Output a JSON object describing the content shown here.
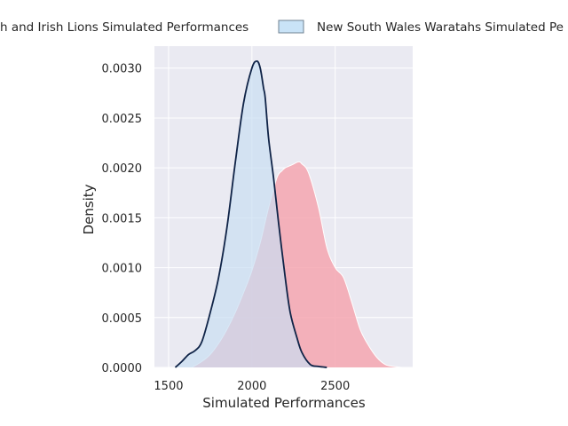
{
  "chart_data": {
    "type": "area",
    "xlabel": "Simulated Performances",
    "ylabel": "Density",
    "xlim": [
      1415,
      2965
    ],
    "ylim": [
      0,
      0.00322
    ],
    "xticks": [
      1500,
      2000,
      2500
    ],
    "xtick_labels": [
      "1500",
      "2000",
      "2500"
    ],
    "yticks": [
      0,
      0.0005,
      0.001,
      0.0015,
      0.002,
      0.0025,
      0.003
    ],
    "ytick_labels": [
      "0.0000",
      "0.0005",
      "0.0010",
      "0.0015",
      "0.0020",
      "0.0025",
      "0.0030"
    ],
    "grid": true,
    "legend_position": "top",
    "legend_visible_text": [
      "h and Irish Lions Simulated Performances",
      "New South Wales Waratahs Simulated Pe"
    ],
    "series": [
      {
        "name": "British and Irish Lions Simulated Performances",
        "fill_color": "#f4a6b0",
        "line_color": "#ffffff",
        "x": [
          1640,
          1700,
          1750,
          1800,
          1850,
          1900,
          1950,
          2000,
          2050,
          2100,
          2150,
          2180,
          2200,
          2240,
          2280,
          2300,
          2340,
          2400,
          2450,
          2500,
          2550,
          2600,
          2650,
          2700,
          2750,
          2800,
          2850,
          2900
        ],
        "values": [
          0.0,
          6e-05,
          0.00013,
          0.00024,
          0.00038,
          0.00055,
          0.00075,
          0.00097,
          0.00125,
          0.0016,
          0.0019,
          0.00197,
          0.002,
          0.00203,
          0.00206,
          0.00204,
          0.00195,
          0.0016,
          0.0012,
          0.001,
          0.0009,
          0.00065,
          0.00038,
          0.00022,
          0.0001,
          3e-05,
          1e-05,
          0.0
        ]
      },
      {
        "name": "New South Wales Waratahs Simulated Performances",
        "fill_color": "#c9def2",
        "line_color": "#0f2347",
        "x": [
          1540,
          1580,
          1620,
          1660,
          1700,
          1750,
          1800,
          1850,
          1900,
          1950,
          2000,
          2030,
          2050,
          2070,
          2080,
          2100,
          2130,
          2160,
          2200,
          2230,
          2270,
          2300,
          2350,
          2400,
          2450
        ],
        "values": [
          0.0,
          6e-05,
          0.00013,
          0.00017,
          0.00026,
          0.00055,
          0.0009,
          0.0014,
          0.00205,
          0.00265,
          0.003,
          0.00307,
          0.003,
          0.0028,
          0.0027,
          0.0023,
          0.0019,
          0.00145,
          0.0009,
          0.00055,
          0.0003,
          0.00015,
          3e-05,
          1e-05,
          0.0
        ]
      }
    ]
  }
}
